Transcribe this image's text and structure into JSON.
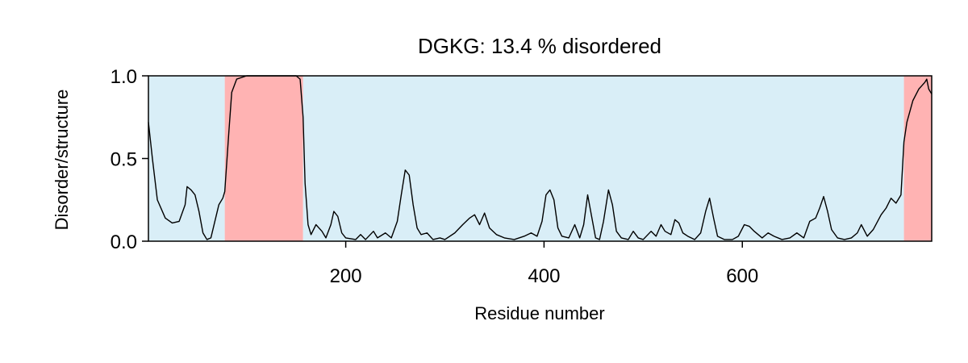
{
  "chart_data": {
    "type": "line",
    "title": "DGKG: 13.4 % disordered",
    "xlabel": "Residue number",
    "ylabel": "Disorder/structure",
    "xlim": [
      1,
      791
    ],
    "ylim": [
      0,
      1
    ],
    "xticks": [
      200,
      400,
      600
    ],
    "yticks": [
      0.0,
      0.5,
      1.0
    ],
    "ytick_labels": [
      "0.0",
      "0.5",
      "1.0"
    ],
    "grid": false,
    "colors": {
      "structured": "#d9eef7",
      "disordered": "#ffb3b3",
      "line": "#000000"
    },
    "regions": [
      {
        "kind": "structured",
        "start": 1,
        "end": 78
      },
      {
        "kind": "disordered",
        "start": 78,
        "end": 157
      },
      {
        "kind": "structured",
        "start": 157,
        "end": 763
      },
      {
        "kind": "disordered",
        "start": 763,
        "end": 791
      }
    ],
    "series": [
      {
        "values": [
          [
            1,
            0.72
          ],
          [
            5,
            0.5
          ],
          [
            10,
            0.25
          ],
          [
            18,
            0.14
          ],
          [
            25,
            0.11
          ],
          [
            32,
            0.12
          ],
          [
            38,
            0.22
          ],
          [
            40,
            0.33
          ],
          [
            44,
            0.31
          ],
          [
            48,
            0.28
          ],
          [
            52,
            0.18
          ],
          [
            56,
            0.05
          ],
          [
            60,
            0.01
          ],
          [
            64,
            0.02
          ],
          [
            68,
            0.12
          ],
          [
            72,
            0.22
          ],
          [
            76,
            0.26
          ],
          [
            78,
            0.3
          ],
          [
            82,
            0.65
          ],
          [
            85,
            0.9
          ],
          [
            90,
            0.98
          ],
          [
            100,
            1.0
          ],
          [
            120,
            1.0
          ],
          [
            140,
            1.0
          ],
          [
            150,
            1.0
          ],
          [
            154,
            0.98
          ],
          [
            157,
            0.75
          ],
          [
            159,
            0.35
          ],
          [
            162,
            0.1
          ],
          [
            165,
            0.04
          ],
          [
            170,
            0.1
          ],
          [
            176,
            0.06
          ],
          [
            180,
            0.02
          ],
          [
            185,
            0.1
          ],
          [
            188,
            0.18
          ],
          [
            192,
            0.15
          ],
          [
            196,
            0.05
          ],
          [
            200,
            0.02
          ],
          [
            210,
            0.01
          ],
          [
            215,
            0.04
          ],
          [
            220,
            0.01
          ],
          [
            228,
            0.06
          ],
          [
            232,
            0.02
          ],
          [
            240,
            0.05
          ],
          [
            246,
            0.02
          ],
          [
            252,
            0.12
          ],
          [
            256,
            0.28
          ],
          [
            260,
            0.43
          ],
          [
            264,
            0.4
          ],
          [
            268,
            0.22
          ],
          [
            272,
            0.08
          ],
          [
            276,
            0.04
          ],
          [
            282,
            0.05
          ],
          [
            288,
            0.01
          ],
          [
            295,
            0.02
          ],
          [
            300,
            0.01
          ],
          [
            310,
            0.05
          ],
          [
            318,
            0.1
          ],
          [
            325,
            0.14
          ],
          [
            330,
            0.16
          ],
          [
            335,
            0.1
          ],
          [
            340,
            0.17
          ],
          [
            345,
            0.08
          ],
          [
            352,
            0.04
          ],
          [
            360,
            0.02
          ],
          [
            370,
            0.01
          ],
          [
            380,
            0.03
          ],
          [
            387,
            0.05
          ],
          [
            393,
            0.03
          ],
          [
            398,
            0.12
          ],
          [
            402,
            0.28
          ],
          [
            406,
            0.31
          ],
          [
            410,
            0.25
          ],
          [
            414,
            0.08
          ],
          [
            418,
            0.03
          ],
          [
            425,
            0.02
          ],
          [
            431,
            0.1
          ],
          [
            436,
            0.02
          ],
          [
            440,
            0.1
          ],
          [
            444,
            0.28
          ],
          [
            448,
            0.15
          ],
          [
            452,
            0.02
          ],
          [
            456,
            0.01
          ],
          [
            460,
            0.12
          ],
          [
            465,
            0.31
          ],
          [
            469,
            0.22
          ],
          [
            473,
            0.06
          ],
          [
            478,
            0.02
          ],
          [
            485,
            0.01
          ],
          [
            490,
            0.06
          ],
          [
            495,
            0.02
          ],
          [
            500,
            0.01
          ],
          [
            508,
            0.06
          ],
          [
            513,
            0.03
          ],
          [
            518,
            0.1
          ],
          [
            522,
            0.06
          ],
          [
            528,
            0.04
          ],
          [
            532,
            0.13
          ],
          [
            536,
            0.11
          ],
          [
            540,
            0.05
          ],
          [
            545,
            0.03
          ],
          [
            552,
            0.01
          ],
          [
            558,
            0.05
          ],
          [
            563,
            0.18
          ],
          [
            567,
            0.26
          ],
          [
            571,
            0.14
          ],
          [
            575,
            0.03
          ],
          [
            582,
            0.01
          ],
          [
            590,
            0.01
          ],
          [
            596,
            0.03
          ],
          [
            602,
            0.1
          ],
          [
            607,
            0.09
          ],
          [
            612,
            0.06
          ],
          [
            620,
            0.02
          ],
          [
            626,
            0.05
          ],
          [
            632,
            0.03
          ],
          [
            640,
            0.01
          ],
          [
            648,
            0.02
          ],
          [
            655,
            0.05
          ],
          [
            662,
            0.02
          ],
          [
            668,
            0.12
          ],
          [
            674,
            0.14
          ],
          [
            678,
            0.2
          ],
          [
            682,
            0.27
          ],
          [
            686,
            0.18
          ],
          [
            690,
            0.07
          ],
          [
            696,
            0.02
          ],
          [
            703,
            0.01
          ],
          [
            710,
            0.02
          ],
          [
            716,
            0.05
          ],
          [
            720,
            0.1
          ],
          [
            726,
            0.03
          ],
          [
            732,
            0.07
          ],
          [
            740,
            0.16
          ],
          [
            745,
            0.2
          ],
          [
            750,
            0.26
          ],
          [
            755,
            0.23
          ],
          [
            760,
            0.28
          ],
          [
            763,
            0.6
          ],
          [
            766,
            0.72
          ],
          [
            772,
            0.85
          ],
          [
            778,
            0.92
          ],
          [
            784,
            0.96
          ],
          [
            786,
            0.98
          ],
          [
            788,
            0.92
          ],
          [
            791,
            0.89
          ]
        ]
      }
    ]
  }
}
